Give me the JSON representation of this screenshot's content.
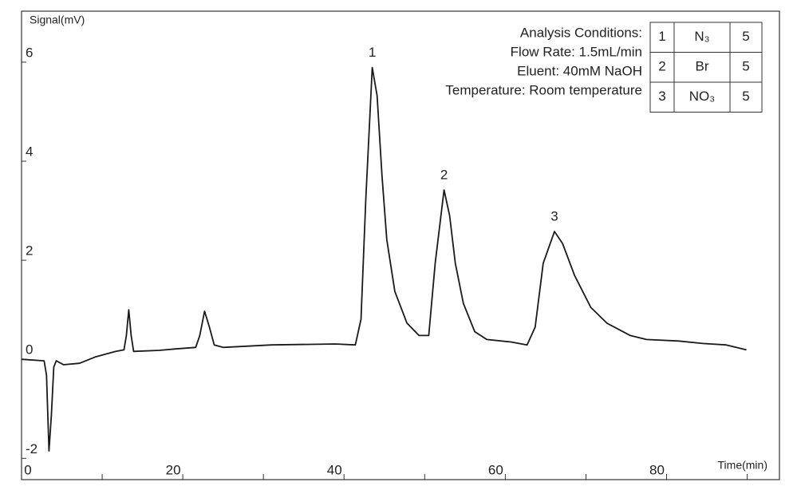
{
  "chart_data": {
    "type": "line",
    "y_label": "Signal(mV)",
    "x_label": "Time(min)",
    "x": [
      0,
      2.8,
      3.1,
      3.4,
      3.7,
      4.0,
      4.3,
      5.2,
      7.2,
      9.2,
      11.7,
      12.7,
      13.0,
      13.3,
      13.6,
      13.9,
      17.1,
      19.1,
      21.6,
      22.1,
      22.7,
      23.3,
      23.9,
      25.0,
      31.0,
      38.9,
      41.4,
      42.1,
      42.7,
      43.5,
      44.1,
      44.7,
      45.3,
      46.3,
      47.8,
      49.3,
      50.5,
      51.3,
      52.4,
      53.1,
      53.8,
      54.8,
      56.2,
      57.7,
      60.7,
      62.7,
      63.7,
      64.7,
      66.1,
      67.1,
      68.6,
      70.6,
      72.6,
      75.5,
      77.5,
      81.5,
      84.5,
      87.4,
      89.9
    ],
    "values": [
      0,
      -0.03,
      -0.32,
      -1.85,
      -1.13,
      -0.16,
      -0.03,
      -0.11,
      -0.08,
      0.05,
      0.16,
      0.19,
      0.48,
      1.0,
      0.48,
      0.16,
      0.18,
      0.21,
      0.24,
      0.48,
      0.97,
      0.65,
      0.29,
      0.24,
      0.29,
      0.31,
      0.29,
      0.81,
      3.23,
      5.89,
      5.32,
      3.71,
      2.42,
      1.37,
      0.73,
      0.48,
      0.48,
      1.94,
      3.42,
      2.9,
      1.94,
      1.13,
      0.56,
      0.4,
      0.35,
      0.29,
      0.65,
      1.94,
      2.58,
      2.34,
      1.69,
      1.05,
      0.73,
      0.48,
      0.4,
      0.37,
      0.32,
      0.29,
      0.19
    ],
    "color": "#1a1a1a",
    "xlim": [
      0,
      94
    ],
    "ylim": [
      -2.43,
      7.03
    ],
    "xticks": [
      0,
      {
        "value": 10,
        "label": null
      },
      20,
      {
        "value": 30,
        "label": null
      },
      40,
      {
        "value": 50,
        "label": null
      },
      60,
      {
        "value": 70,
        "label": null
      },
      80,
      {
        "value": 90,
        "label": null
      }
    ],
    "yticks": [
      -2,
      0,
      2,
      4,
      6
    ],
    "peak_labels": [
      {
        "text": "1",
        "x": 43.5
      },
      {
        "text": "2",
        "x": 52.4
      },
      {
        "text": "3",
        "x": 66.1
      }
    ],
    "conditions": [
      "Analysis Conditions:",
      "Flow Rate: 1.5mL/min",
      "Eluent: 40mM NaOH",
      "Temperature: Room temperature"
    ],
    "table": {
      "rows": [
        [
          "1",
          "N₃",
          "5"
        ],
        [
          "2",
          "Br",
          "5"
        ],
        [
          "3",
          "NO₃",
          "5"
        ]
      ]
    }
  }
}
